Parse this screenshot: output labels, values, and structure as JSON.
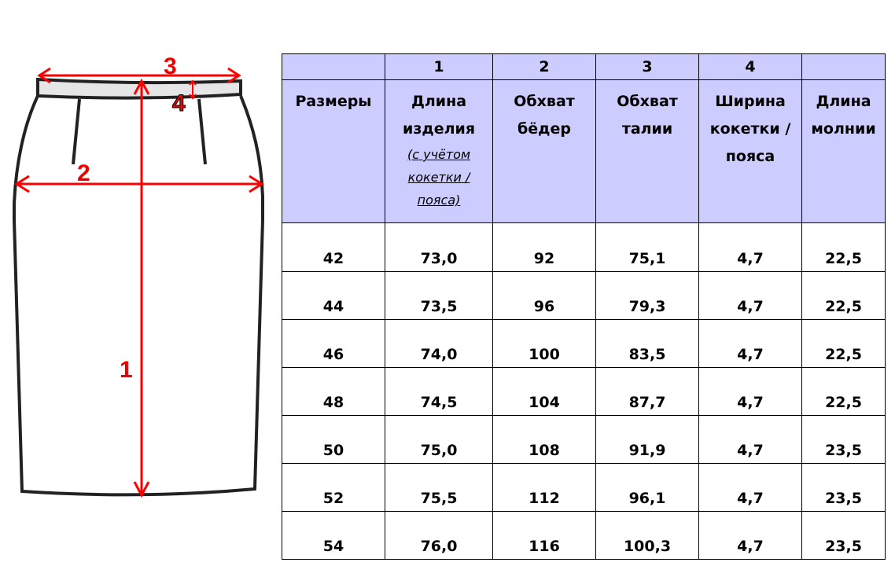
{
  "diagram": {
    "labels": [
      "1",
      "2",
      "3",
      "4"
    ],
    "colors": {
      "outline": "#222222",
      "waistband": "#e0e0e0",
      "arrows": "#ff0000"
    }
  },
  "table": {
    "colors": {
      "header_bg": "#ccccff"
    },
    "numbers": [
      "",
      "1",
      "2",
      "3",
      "4",
      ""
    ],
    "headers": [
      {
        "title": "Размеры"
      },
      {
        "title": "Длина изделия",
        "note": "(с учётом кокетки / пояса)"
      },
      {
        "title": "Обхват бёдер"
      },
      {
        "title": "Обхват талии"
      },
      {
        "title": "Ширина кокетки / пояса"
      },
      {
        "title": "Длина молнии"
      }
    ],
    "rows": [
      [
        "42",
        "73,0",
        "92",
        "75,1",
        "4,7",
        "22,5"
      ],
      [
        "44",
        "73,5",
        "96",
        "79,3",
        "4,7",
        "22,5"
      ],
      [
        "46",
        "74,0",
        "100",
        "83,5",
        "4,7",
        "22,5"
      ],
      [
        "48",
        "74,5",
        "104",
        "87,7",
        "4,7",
        "22,5"
      ],
      [
        "50",
        "75,0",
        "108",
        "91,9",
        "4,7",
        "23,5"
      ],
      [
        "52",
        "75,5",
        "112",
        "96,1",
        "4,7",
        "23,5"
      ],
      [
        "54",
        "76,0",
        "116",
        "100,3",
        "4,7",
        "23,5"
      ]
    ]
  }
}
